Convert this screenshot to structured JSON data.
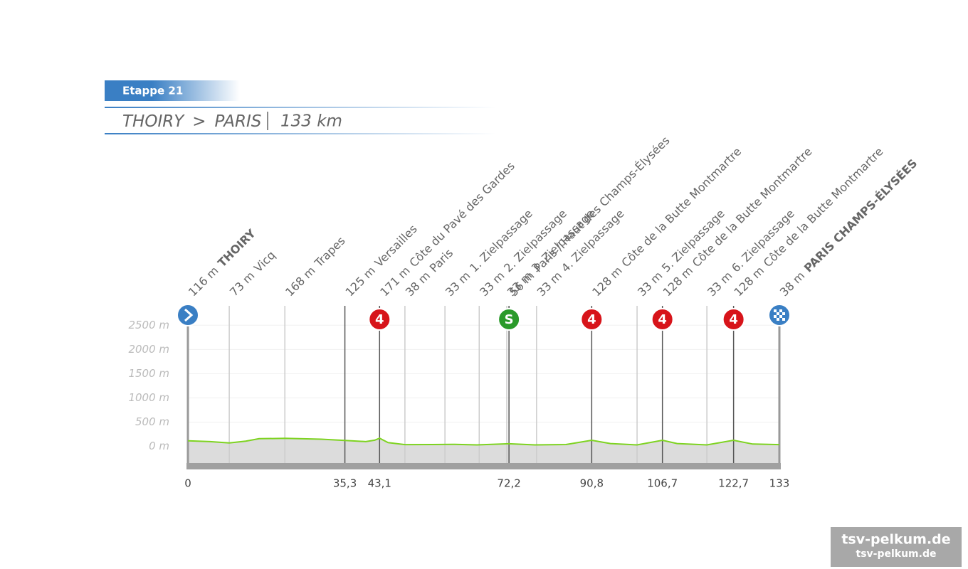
{
  "header": {
    "stage": "Etappe 21",
    "from": "THOIRY",
    "arrow": ">",
    "to": "PARIS",
    "distance": "133 km"
  },
  "chart_data": {
    "type": "profile",
    "x": [
      0,
      5,
      9.3,
      13,
      16,
      21.8,
      30,
      35.3,
      40,
      42,
      43.1,
      45,
      48.8,
      55,
      60,
      65,
      72.2,
      78,
      85,
      90.8,
      95,
      101,
      106.7,
      110,
      116.7,
      122.7,
      127,
      133
    ],
    "values": [
      116,
      100,
      73,
      110,
      160,
      168,
      150,
      125,
      100,
      130,
      171,
      80,
      38,
      40,
      45,
      33,
      56,
      33,
      40,
      128,
      60,
      33,
      128,
      60,
      33,
      128,
      50,
      38
    ],
    "color": "#7ed321",
    "fill": "#dcdcdc",
    "xlim": [
      0,
      133
    ],
    "ylim": [
      -400,
      2900
    ],
    "xticks": [
      0,
      {
        "value": 35.3,
        "label": "35,3"
      },
      {
        "value": 43.1,
        "label": "43,1"
      },
      {
        "value": 72.2,
        "label": "72,2"
      },
      {
        "value": 90.8,
        "label": "90,8"
      },
      {
        "value": 106.7,
        "label": "106,7"
      },
      {
        "value": 122.7,
        "label": "122,7"
      },
      133
    ],
    "yticks": [
      {
        "value": 0,
        "label": "0 m"
      },
      {
        "value": 500,
        "label": "500 m"
      },
      {
        "value": 1000,
        "label": "1000 m"
      },
      {
        "value": 1500,
        "label": "1500 m"
      },
      {
        "value": 2000,
        "label": "2000 m"
      },
      {
        "value": 2500,
        "label": "2500 m"
      }
    ],
    "grid": true,
    "waypoints": [
      {
        "km": 0,
        "altitude": "116 m",
        "name": "THOIRY",
        "bold": true
      },
      {
        "km": 9.3,
        "altitude": "73 m",
        "name": "Vicq"
      },
      {
        "km": 21.8,
        "altitude": "168 m",
        "name": "Trapes"
      },
      {
        "km": 35.3,
        "altitude": "125 m",
        "name": "Versailles"
      },
      {
        "km": 43.1,
        "altitude": "171 m",
        "name": "Côte du Pavé des Gardes",
        "marker": "4",
        "marker_color": "#d7141a"
      },
      {
        "km": 48.8,
        "altitude": "38 m",
        "name": "Paris"
      },
      {
        "km": 57.8,
        "altitude": "33 m",
        "name": "1. Zielpassage"
      },
      {
        "km": 65.5,
        "altitude": "33 m",
        "name": "2. Zielpassage"
      },
      {
        "km": 71.7,
        "altitude": "33 m",
        "name": "3. Zielpassage"
      },
      {
        "km": 72.2,
        "altitude": "56 m",
        "name": "Paris / Haut des Champs-Élysées",
        "marker": "S",
        "marker_color": "#2a9a2a"
      },
      {
        "km": 78.4,
        "altitude": "33 m",
        "name": "4. Zielpassage"
      },
      {
        "km": 90.8,
        "altitude": "128 m",
        "name": "Côte de la Butte Montmartre",
        "marker": "4",
        "marker_color": "#d7141a"
      },
      {
        "km": 101,
        "altitude": "33 m",
        "name": "5. Zielpassage"
      },
      {
        "km": 106.7,
        "altitude": "128 m",
        "name": "Côte de la Butte Montmartre",
        "marker": "4",
        "marker_color": "#d7141a"
      },
      {
        "km": 116.7,
        "altitude": "33 m",
        "name": "6. Zielpassage"
      },
      {
        "km": 122.7,
        "altitude": "128 m",
        "name": "Côte de la Butte Montmartre",
        "marker": "4",
        "marker_color": "#d7141a"
      },
      {
        "km": 133,
        "altitude": "38 m",
        "name": "PARIS CHAMPS-ÉLYSÉES",
        "bold": true
      }
    ]
  },
  "watermark": {
    "line1": "tsv-pelkum.de",
    "line2": "tsv-pelkum.de"
  }
}
